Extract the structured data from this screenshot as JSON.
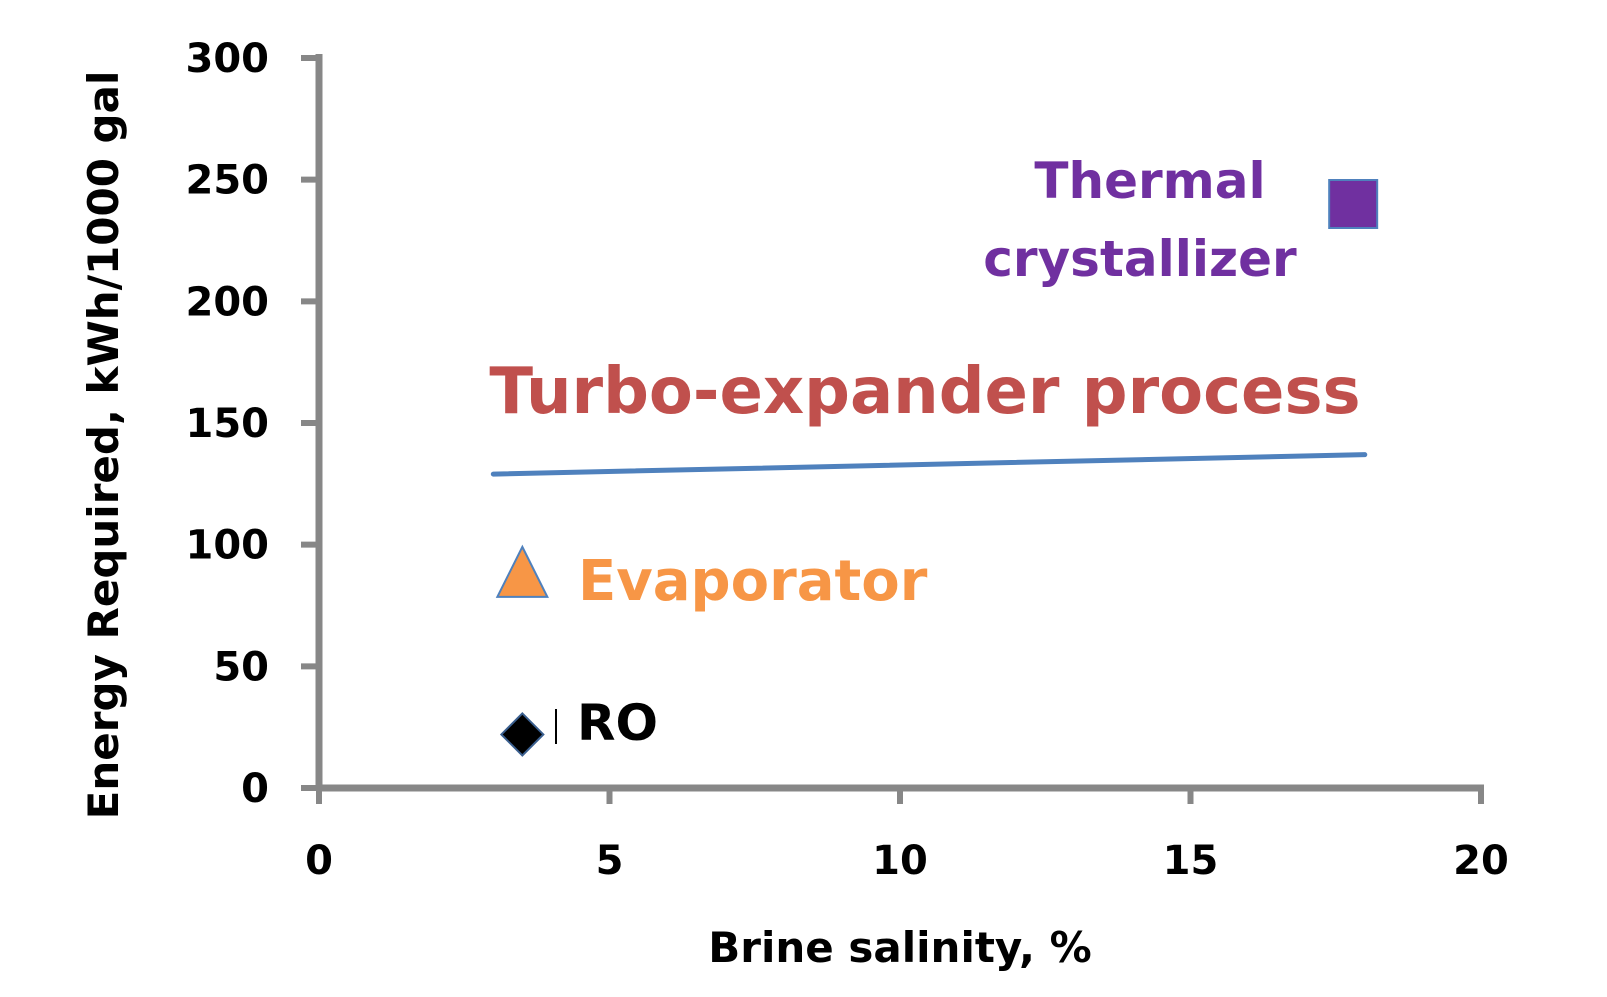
{
  "chart_data": {
    "type": "scatter",
    "title": "",
    "xlabel": "Brine salinity, %",
    "ylabel": "Energy Required, kWh/1000 gal",
    "xlim": [
      0,
      20
    ],
    "ylim": [
      0,
      300
    ],
    "x_ticks": [
      0,
      5,
      10,
      15,
      20
    ],
    "y_ticks": [
      0,
      50,
      100,
      150,
      200,
      250,
      300
    ],
    "grid": false,
    "legend": "none",
    "series": [
      {
        "label": "RO",
        "marker": "diamond",
        "color": "#000000",
        "points": [
          [
            3.5,
            22
          ]
        ]
      },
      {
        "label": "Evaporator",
        "marker": "triangle",
        "color": "#F79646",
        "points": [
          [
            3.5,
            88
          ]
        ]
      },
      {
        "label": "Thermal crystallizer",
        "marker": "square",
        "color": "#7030A0",
        "points": [
          [
            17.8,
            240
          ]
        ]
      },
      {
        "label": "Turbo-expander process",
        "marker": "line",
        "color": "#4F81BD",
        "label_color": "#C0504D",
        "points": [
          [
            3.0,
            129
          ],
          [
            18.0,
            137
          ]
        ]
      }
    ],
    "annotations": [
      {
        "text": "Thermal",
        "color": "#7030A0"
      },
      {
        "text": "crystallizer",
        "color": "#7030A0"
      },
      {
        "text": "Turbo-expander process",
        "color": "#C0504D"
      },
      {
        "text": "Evaporator",
        "color": "#F79646"
      },
      {
        "text": "RO",
        "color": "#000000"
      }
    ]
  }
}
